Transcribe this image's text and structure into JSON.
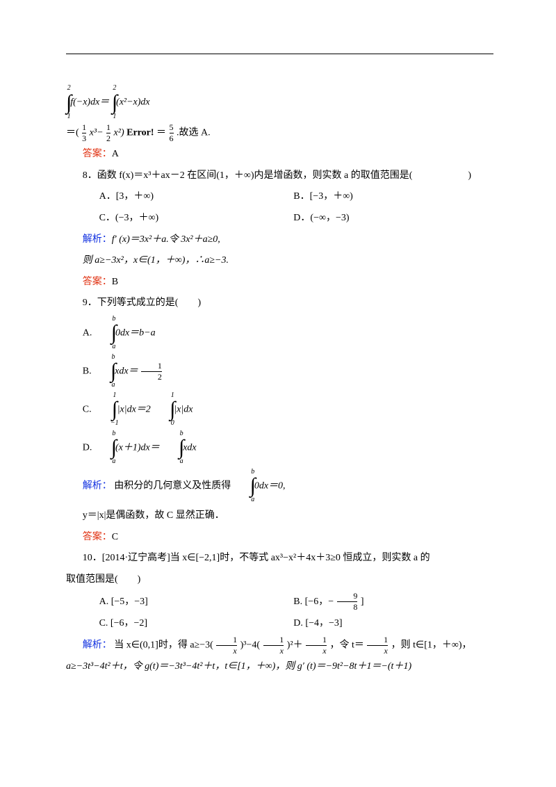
{
  "block1": {
    "l1_int1_sup": "2",
    "l1_int1_sub": "1",
    "l1_a": "f(−x)dx＝",
    "l1_int2_sup": "2",
    "l1_int2_sub": "1",
    "l1_b": "(x²−x)dx",
    "l2_a": "＝(",
    "l2_f1n": "1",
    "l2_f1d": "3",
    "l2_b": "x³−",
    "l2_f2n": "1",
    "l2_f2d": "2",
    "l2_c": "x²)",
    "l2_err": "Error!",
    "l2_d": "＝",
    "l2_f3n": "5",
    "l2_f3d": "6",
    "l2_e": ".故选 A.",
    "ans": "答案：",
    "ansA": "A"
  },
  "q8": {
    "stem_a": "8．函数 f(x)＝x³＋ax－2 在区间(1，＋∞)内是增函数，则实数 a 的取值范围是(",
    "stem_b": ")",
    "A": "A．[3，＋∞)",
    "B": "B．[−3，＋∞)",
    "C": "C．(−3，＋∞)",
    "D": "D．(−∞，−3)",
    "sol_lbl": "解析：",
    "sol1": "f′ (x)＝3x²＋a.令 3x²＋a≥0,",
    "sol2": "则 a≥−3x²，x∈(1，＋∞)，∴a≥−3.",
    "ans": "答案：",
    "ansB": "B"
  },
  "q9": {
    "stem": "9．下列等式成立的是(　　)",
    "A_int_sup": "b",
    "A_int_sub": "a",
    "A_body": "0dx＝b−a",
    "A_pre": "A.",
    "B_int_sup": "b",
    "B_int_sub": "a",
    "B_pre": "B.",
    "B_mid": "xdx＝",
    "B_frac_n": "1",
    "B_frac_d": "2",
    "C_pre": "C.",
    "C_i1_sup": "1",
    "C_i1_sub": "−1",
    "C_mid1": "|x|dx＝2",
    "C_i2_sup": "1",
    "C_i2_sub": "0",
    "C_mid2": "|x|dx",
    "D_pre": "D.",
    "D_i1_sup": "b",
    "D_i1_sub": "a",
    "D_mid1": "(x＋1)dx＝",
    "D_i2_sup": "b",
    "D_i2_sub": "a",
    "D_mid2": "xdx",
    "sol_lbl": "解析：",
    "sol1a": "由积分的几何意义及性质得",
    "sol_int_sup": "b",
    "sol_int_sub": "a",
    "sol1b": "0dx＝0,",
    "sol2": "y＝|x|是偶函数，故 C 显然正确．",
    "ans": "答案：",
    "ansC": "C"
  },
  "q10": {
    "stem1": "10．[2014·辽宁高考]当 x∈[−2,1]时，不等式 ax³−x²＋4x＋3≥0 恒成立，则实数 a 的",
    "stem2": "取值范围是(　　)",
    "A": "A. [−5，−3]",
    "B_pre": "B. [−6，−",
    "B_frac_n": "9",
    "B_frac_d": "8",
    "B_post": "]",
    "C": "C. [−6，−2]",
    "D": "D. [−4，−3]",
    "sol_lbl": "解析：",
    "sol1a": "当 x∈(0,1]时，得 a≥−3(",
    "f1n": "1",
    "f1d": "x",
    "sol1b": ")³−4(",
    "f2n": "1",
    "f2d": "x",
    "sol1c": ")²＋",
    "f3n": "1",
    "f3d": "x",
    "sol1d": "，令 t＝",
    "f4n": "1",
    "f4d": "x",
    "sol1e": "，则 t∈[1，＋∞)，",
    "sol2": "a≥−3t³−4t²＋t，令 g(t)＝−3t³−4t²＋t，t∈[1，＋∞)，则 g′ (t)＝−9t²−8t＋1＝−(t＋1)"
  },
  "colors": {
    "blue": "#1030e0",
    "red": "#e03010"
  }
}
